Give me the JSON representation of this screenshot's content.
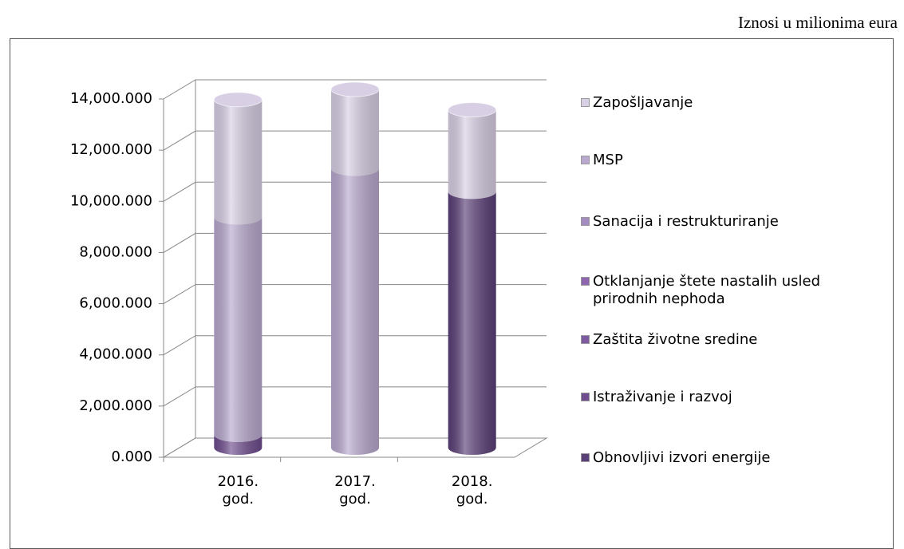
{
  "chart_data": {
    "type": "bar",
    "stacked": true,
    "three_d": true,
    "note": "Iznosi u milionima eura",
    "categories": [
      "2016. god.",
      "2017. god.",
      "2018. god."
    ],
    "series": [
      {
        "name": "Obnovljivi izvori energije",
        "color": "#5b3f78",
        "values": [
          0,
          0,
          10000
        ]
      },
      {
        "name": "Istraživanje i razvoj",
        "color": "#6e4c8e",
        "values": [
          500,
          0,
          0
        ]
      },
      {
        "name": "Zaštita životne sredine",
        "color": "#7e5aa0",
        "values": [
          0,
          0,
          0
        ]
      },
      {
        "name": "Otklanjanje štete nastalih usled prirodnih nephoda",
        "color": "#8e66b0",
        "values": [
          0,
          0,
          0
        ]
      },
      {
        "name": "Sanacija i restrukturiranje",
        "color": "#a58cc0",
        "values": [
          0,
          0,
          0
        ]
      },
      {
        "name": "MSP",
        "color": "#b9a9cf",
        "values": [
          8500,
          10900,
          0
        ]
      },
      {
        "name": "Zapošljavanje",
        "color": "#d8cfe5",
        "values": [
          4600,
          3100,
          3200
        ]
      }
    ],
    "ylim": [
      0,
      14000
    ],
    "yticks": [
      {
        "value": 0,
        "label": "0.000"
      },
      {
        "value": 2000,
        "label": "2,000.000"
      },
      {
        "value": 4000,
        "label": "4,000.000"
      },
      {
        "value": 6000,
        "label": "6,000.000"
      },
      {
        "value": 8000,
        "label": "8,000.000"
      },
      {
        "value": 10000,
        "label": "10,000.000"
      },
      {
        "value": 12000,
        "label": "12,000.000"
      },
      {
        "value": 14000,
        "label": "14,000.000"
      }
    ],
    "grid": true,
    "legend": "right"
  }
}
